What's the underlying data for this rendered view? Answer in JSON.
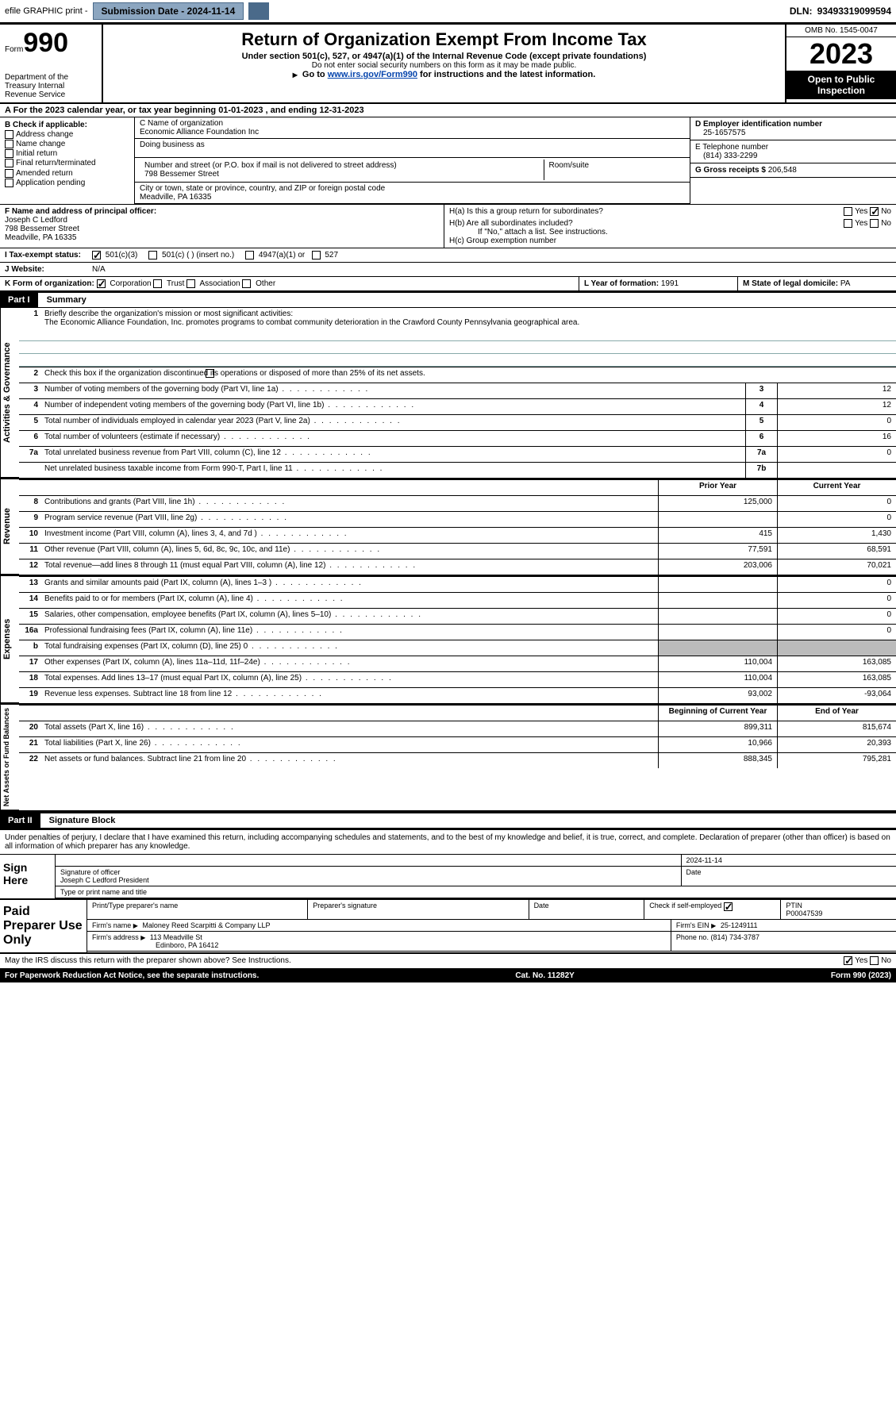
{
  "topbar": {
    "efile": "efile GRAPHIC print -",
    "submission_label": "Submission Date - 2024-11-14",
    "dln_label": "DLN:",
    "dln": "93493319099594"
  },
  "header": {
    "form_word": "Form",
    "form_num": "990",
    "dept": "Department of the Treasury Internal Revenue Service",
    "title": "Return of Organization Exempt From Income Tax",
    "subtitle": "Under section 501(c), 527, or 4947(a)(1) of the Internal Revenue Code (except private foundations)",
    "note1": "Do not enter social security numbers on this form as it may be made public.",
    "note2_pre": "Go to ",
    "note2_link": "www.irs.gov/Form990",
    "note2_post": " for instructions and the latest information.",
    "omb": "OMB No. 1545-0047",
    "year": "2023",
    "inspect": "Open to Public Inspection"
  },
  "rowA": "A For the 2023 calendar year, or tax year beginning 01-01-2023    , and ending 12-31-2023",
  "colB": {
    "title": "B Check if applicable:",
    "opts": [
      "Address change",
      "Name change",
      "Initial return",
      "Final return/terminated",
      "Amended return",
      "Application pending"
    ]
  },
  "colC": {
    "name_label": "C Name of organization",
    "name": "Economic Alliance Foundation Inc",
    "dba_label": "Doing business as",
    "street_label": "Number and street (or P.O. box if mail is not delivered to street address)",
    "street": "798 Bessemer Street",
    "room_label": "Room/suite",
    "city_label": "City or town, state or province, country, and ZIP or foreign postal code",
    "city": "Meadville, PA  16335"
  },
  "colD": {
    "ein_label": "D Employer identification number",
    "ein": "25-1657575",
    "phone_label": "E Telephone number",
    "phone": "(814) 333-2299",
    "gross_label": "G Gross receipts $",
    "gross": "206,548"
  },
  "officer": {
    "label": "F  Name and address of principal officer:",
    "name": "Joseph C Ledford",
    "street": "798 Bessemer Street",
    "city": "Meadville, PA  16335"
  },
  "groupH": {
    "ha": "H(a)  Is this a group return for subordinates?",
    "hb": "H(b)  Are all subordinates included?",
    "hb_note": "If \"No,\" attach a list. See instructions.",
    "hc": "H(c)  Group exemption number",
    "yes": "Yes",
    "no": "No"
  },
  "taxStatus": {
    "label": "I  Tax-exempt status:",
    "o1": "501(c)(3)",
    "o2": "501(c) (  ) (insert no.)",
    "o3": "4947(a)(1) or",
    "o4": "527"
  },
  "website": {
    "label": "J  Website:",
    "value": "N/A"
  },
  "orgForm": {
    "label": "K Form of organization:",
    "corp": "Corporation",
    "trust": "Trust",
    "assoc": "Association",
    "other": "Other",
    "year_label": "L Year of formation:",
    "year": "1991",
    "state_label": "M State of legal domicile:",
    "state": "PA"
  },
  "part1": {
    "label": "Part I",
    "title": "Summary"
  },
  "summary": {
    "line1_label": "Briefly describe the organization's mission or most significant activities:",
    "mission": "The Economic Alliance Foundation, Inc. promotes programs to combat community deterioration in the Crawford County Pennsylvania geographical area.",
    "line2": "Check this box       if the organization discontinued its operations or disposed of more than 25% of its net assets.",
    "lines_single": [
      {
        "n": "3",
        "t": "Number of voting members of the governing body (Part VI, line 1a)",
        "c": "3",
        "v": "12"
      },
      {
        "n": "4",
        "t": "Number of independent voting members of the governing body (Part VI, line 1b)",
        "c": "4",
        "v": "12"
      },
      {
        "n": "5",
        "t": "Total number of individuals employed in calendar year 2023 (Part V, line 2a)",
        "c": "5",
        "v": "0"
      },
      {
        "n": "6",
        "t": "Total number of volunteers (estimate if necessary)",
        "c": "6",
        "v": "16"
      },
      {
        "n": "7a",
        "t": "Total unrelated business revenue from Part VIII, column (C), line 12",
        "c": "7a",
        "v": "0"
      },
      {
        "n": "",
        "t": "Net unrelated business taxable income from Form 990-T, Part I, line 11",
        "c": "7b",
        "v": ""
      }
    ],
    "prior_label": "Prior Year",
    "current_label": "Current Year",
    "revenue": [
      {
        "n": "8",
        "t": "Contributions and grants (Part VIII, line 1h)",
        "p": "125,000",
        "c": "0"
      },
      {
        "n": "9",
        "t": "Program service revenue (Part VIII, line 2g)",
        "p": "",
        "c": "0"
      },
      {
        "n": "10",
        "t": "Investment income (Part VIII, column (A), lines 3, 4, and 7d )",
        "p": "415",
        "c": "1,430"
      },
      {
        "n": "11",
        "t": "Other revenue (Part VIII, column (A), lines 5, 6d, 8c, 9c, 10c, and 11e)",
        "p": "77,591",
        "c": "68,591"
      },
      {
        "n": "12",
        "t": "Total revenue—add lines 8 through 11 (must equal Part VIII, column (A), line 12)",
        "p": "203,006",
        "c": "70,021"
      }
    ],
    "expenses": [
      {
        "n": "13",
        "t": "Grants and similar amounts paid (Part IX, column (A), lines 1–3 )",
        "p": "",
        "c": "0"
      },
      {
        "n": "14",
        "t": "Benefits paid to or for members (Part IX, column (A), line 4)",
        "p": "",
        "c": "0"
      },
      {
        "n": "15",
        "t": "Salaries, other compensation, employee benefits (Part IX, column (A), lines 5–10)",
        "p": "",
        "c": "0"
      },
      {
        "n": "16a",
        "t": "Professional fundraising fees (Part IX, column (A), line 11e)",
        "p": "",
        "c": "0"
      },
      {
        "n": "b",
        "t": "Total fundraising expenses (Part IX, column (D), line 25) 0",
        "p": "shade",
        "c": "shade"
      },
      {
        "n": "17",
        "t": "Other expenses (Part IX, column (A), lines 11a–11d, 11f–24e)",
        "p": "110,004",
        "c": "163,085"
      },
      {
        "n": "18",
        "t": "Total expenses. Add lines 13–17 (must equal Part IX, column (A), line 25)",
        "p": "110,004",
        "c": "163,085"
      },
      {
        "n": "19",
        "t": "Revenue less expenses. Subtract line 18 from line 12",
        "p": "93,002",
        "c": "-93,064"
      }
    ],
    "begin_label": "Beginning of Current Year",
    "end_label": "End of Year",
    "netassets": [
      {
        "n": "20",
        "t": "Total assets (Part X, line 16)",
        "p": "899,311",
        "c": "815,674"
      },
      {
        "n": "21",
        "t": "Total liabilities (Part X, line 26)",
        "p": "10,966",
        "c": "20,393"
      },
      {
        "n": "22",
        "t": "Net assets or fund balances. Subtract line 21 from line 20",
        "p": "888,345",
        "c": "795,281"
      }
    ]
  },
  "sideLabels": {
    "ag": "Activities & Governance",
    "rev": "Revenue",
    "exp": "Expenses",
    "na": "Net Assets or Fund Balances"
  },
  "part2": {
    "label": "Part II",
    "title": "Signature Block"
  },
  "sig": {
    "declare": "Under penalties of perjury, I declare that I have examined this return, including accompanying schedules and statements, and to the best of my knowledge and belief, it is true, correct, and complete. Declaration of preparer (other than officer) is based on all information of which preparer has any knowledge.",
    "sign_here": "Sign Here",
    "sig_officer": "Signature of officer",
    "sig_name": "Joseph C Ledford  President",
    "sig_title": "Type or print name and title",
    "date_label": "Date",
    "date": "2024-11-14",
    "paid": "Paid Preparer Use Only",
    "prep_name_label": "Print/Type preparer's name",
    "prep_sig_label": "Preparer's signature",
    "check_label": "Check         if self-employed",
    "ptin_label": "PTIN",
    "ptin": "P00047539",
    "firm_name_label": "Firm's name",
    "firm_name": "Maloney Reed Scarpitti & Company LLP",
    "firm_ein_label": "Firm's EIN",
    "firm_ein": "25-1249111",
    "firm_addr_label": "Firm's address",
    "firm_addr": "113 Meadville St",
    "firm_city": "Edinboro, PA  16412",
    "phone_label": "Phone no.",
    "phone": "(814) 734-3787"
  },
  "footer": {
    "discuss": "May the IRS discuss this return with the preparer shown above? See Instructions.",
    "yes": "Yes",
    "no": "No",
    "pra": "For Paperwork Reduction Act Notice, see the separate instructions.",
    "cat": "Cat. No. 11282Y",
    "form": "Form 990 (2023)"
  }
}
